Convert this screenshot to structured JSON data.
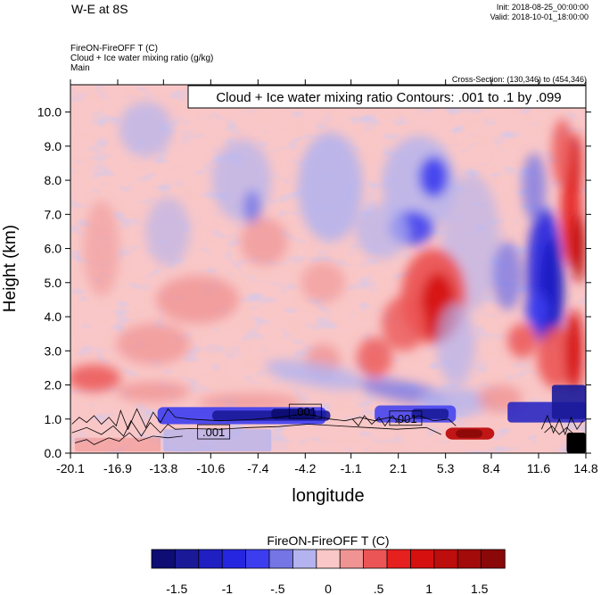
{
  "header": {
    "title": "W-E at 8S",
    "init": "Init: 2018-08-25_00:00:00",
    "valid": "Valid: 2018-10-01_18:00:00",
    "field_lines": [
      "FireON-FireOFF T   (C)",
      "Cloud + Ice water mixing ratio   (g/kg)",
      "Main"
    ],
    "cross_section": "Cross-Section: (130,346) to (454,346)"
  },
  "chart_data": {
    "type": "heatmap",
    "title": "Cloud + Ice water mixing ratio Contours: .001 to .1 by .099",
    "xlabel": "longitude",
    "ylabel": "Height (km)",
    "x_ticks": [
      "-20.1",
      "-16.9",
      "-13.8",
      "-10.6",
      "-7.4",
      "-4.2",
      "-1.1",
      "2.1",
      "5.3",
      "8.4",
      "11.6",
      "14.8"
    ],
    "y_ticks": [
      "0.0",
      "1.0",
      "2.0",
      "3.0",
      "4.0",
      "5.0",
      "6.0",
      "7.0",
      "8.0",
      "9.0",
      "10.0"
    ],
    "xlim": [
      -20.1,
      14.8
    ],
    "ylim": [
      0.0,
      10.8
    ],
    "contour_labels": [
      {
        "text": ".001",
        "x": -4.2,
        "y": 1.2
      },
      {
        "text": ".001",
        "x": -10.4,
        "y": 0.6
      },
      {
        "text": ".001",
        "x": 2.6,
        "y": 1.0
      }
    ],
    "colorbar": {
      "title": "FireON-FireOFF T  (C)",
      "colors": [
        "#0d0d73",
        "#1a1a99",
        "#1f1fc2",
        "#2626e0",
        "#3d3df0",
        "#7575e6",
        "#b3b3ef",
        "#f9c7c7",
        "#f09393",
        "#ec5555",
        "#e61f1f",
        "#d60f0f",
        "#bd0d0d",
        "#a30a0a",
        "#8a0808"
      ],
      "labels": [
        "-1.5",
        "-1",
        "-.5",
        "0",
        ".5",
        "1",
        "1.5"
      ],
      "label_positions": [
        -1.5,
        -1,
        -0.5,
        0,
        0.5,
        1,
        1.5
      ],
      "range": [
        -1.75,
        1.75
      ]
    }
  }
}
